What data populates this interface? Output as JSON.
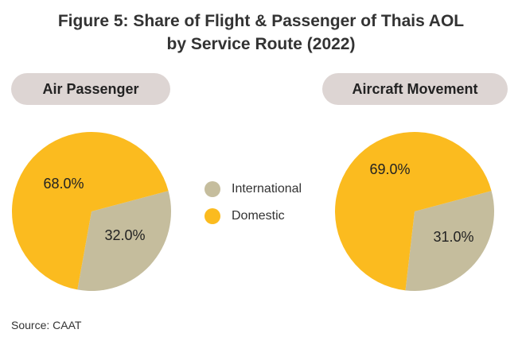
{
  "title": {
    "line1": "Figure 5:  Share of  Flight & Passenger of Thais AOL",
    "line2": "by Service Route (2022)"
  },
  "colors": {
    "international": "#c5bd9d",
    "domestic": "#fbbb1f",
    "pill_bg": "#ddd5d3"
  },
  "legend": [
    {
      "label": "International",
      "color_key": "international"
    },
    {
      "label": "Domestic",
      "color_key": "domestic"
    }
  ],
  "chart_data": [
    {
      "type": "pie",
      "title": "Air Passenger",
      "slices": [
        {
          "label": "International",
          "value": 32.0,
          "display": "32.0%"
        },
        {
          "label": "Domestic",
          "value": 68.0,
          "display": "68.0%"
        }
      ]
    },
    {
      "type": "pie",
      "title": "Aircraft Movement",
      "slices": [
        {
          "label": "International",
          "value": 31.0,
          "display": "31.0%"
        },
        {
          "label": "Domestic",
          "value": 69.0,
          "display": "69.0%"
        }
      ]
    }
  ],
  "source": "Source: CAAT"
}
